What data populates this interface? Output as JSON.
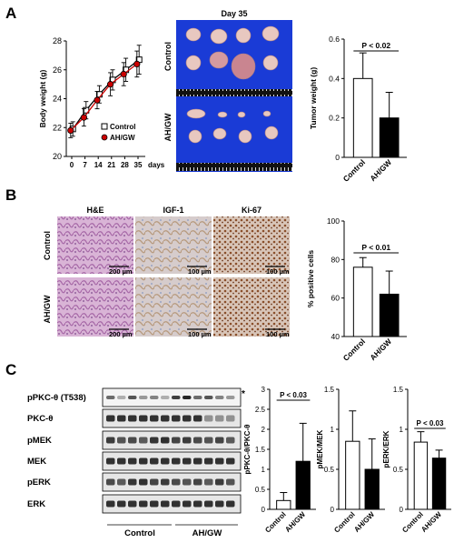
{
  "panels": {
    "A": "A",
    "B": "B",
    "C": "C"
  },
  "panel_a": {
    "photo_title": "Day 35",
    "photo_rows": [
      "Control",
      "AH/GW"
    ]
  },
  "panel_b": {
    "image_cols": [
      "H&E",
      "IGF-1",
      "Ki-67"
    ],
    "image_rows": [
      "Control",
      "AH/GW"
    ],
    "scale_bars": [
      "200 µm",
      "100 µm",
      "100 µm",
      "200 µm",
      "100 µm",
      "100 µm"
    ]
  },
  "panel_c": {
    "blot_labels": [
      "pPKC-θ (T538)",
      "PKC-θ",
      "pMEK",
      "MEK",
      "pERK",
      "ERK"
    ],
    "asterisk": "*",
    "lane_groups": [
      "Control",
      "AH/GW"
    ]
  },
  "colors": {
    "control": "#ffffff",
    "ahgw": "#000000",
    "line_ahgw": "#cc0000",
    "photo_bg": "#1a3bd6"
  },
  "chart_data": [
    {
      "id": "body_weight",
      "type": "line",
      "ylabel": "Body weight (g)",
      "xlabel": "days",
      "x": [
        0,
        7,
        14,
        21,
        28,
        35
      ],
      "ylim": [
        20,
        28
      ],
      "yticks": [
        20,
        22,
        24,
        26,
        28
      ],
      "series": [
        {
          "name": "Control",
          "values": [
            21.9,
            23.2,
            24.3,
            25.3,
            26.0,
            26.7
          ],
          "err": [
            0.5,
            0.6,
            0.6,
            0.7,
            0.8,
            1.0
          ]
        },
        {
          "name": "AH/GW",
          "values": [
            21.8,
            22.7,
            23.9,
            25.0,
            25.7,
            26.4
          ],
          "err": [
            0.5,
            0.6,
            0.6,
            0.8,
            0.8,
            0.9
          ]
        }
      ]
    },
    {
      "id": "tumor_weight",
      "type": "bar",
      "ylabel": "Tumor weight (g)",
      "categories": [
        "Control",
        "AH/GW"
      ],
      "values": [
        0.4,
        0.2
      ],
      "err": [
        0.13,
        0.13
      ],
      "ylim": [
        0,
        0.6
      ],
      "yticks": [
        0,
        0.2,
        0.4,
        0.6
      ],
      "yticklabels": [
        "0",
        "0.2",
        "0.4",
        "0.6"
      ],
      "annotation": "P < 0.02"
    },
    {
      "id": "percent_positive",
      "type": "bar",
      "ylabel": "% positive cells",
      "categories": [
        "Control",
        "AH/GW"
      ],
      "values": [
        76,
        62
      ],
      "err": [
        5,
        12
      ],
      "ylim": [
        40,
        100
      ],
      "yticks": [
        40,
        60,
        80,
        100
      ],
      "yticklabels": [
        "40",
        "60",
        "80",
        "100"
      ],
      "annotation": "P < 0.01"
    },
    {
      "id": "ppkc_ratio",
      "type": "bar",
      "ylabel": "pPKC-θ/PKC-θ",
      "categories": [
        "Control",
        "AH/GW"
      ],
      "values": [
        0.22,
        1.2
      ],
      "err": [
        0.2,
        0.95
      ],
      "ylim": [
        0,
        3
      ],
      "yticks": [
        0,
        0.5,
        1,
        1.5,
        2,
        2.5,
        3
      ],
      "yticklabels": [
        "0",
        "0.5",
        "1",
        "1.5",
        "2",
        "2.5",
        "3"
      ],
      "annotation": "P < 0.03"
    },
    {
      "id": "pmek_ratio",
      "type": "bar",
      "ylabel": "pMEK/MEK",
      "categories": [
        "Control",
        "AH/GW"
      ],
      "values": [
        0.85,
        0.5
      ],
      "err": [
        0.38,
        0.38
      ],
      "ylim": [
        0,
        1.5
      ],
      "yticks": [
        0,
        0.5,
        1,
        1.5
      ],
      "yticklabels": [
        "0",
        "0.5",
        "1",
        "1.5"
      ],
      "annotation": ""
    },
    {
      "id": "perk_ratio",
      "type": "bar",
      "ylabel": "pERK/ERK",
      "categories": [
        "Control",
        "AH/GW"
      ],
      "values": [
        0.84,
        0.64
      ],
      "err": [
        0.13,
        0.1
      ],
      "ylim": [
        0,
        1.5
      ],
      "yticks": [
        0,
        0.5,
        1,
        1.5
      ],
      "yticklabels": [
        "0",
        "0.5",
        "1",
        "1.5"
      ],
      "annotation": "P < 0.03"
    }
  ]
}
